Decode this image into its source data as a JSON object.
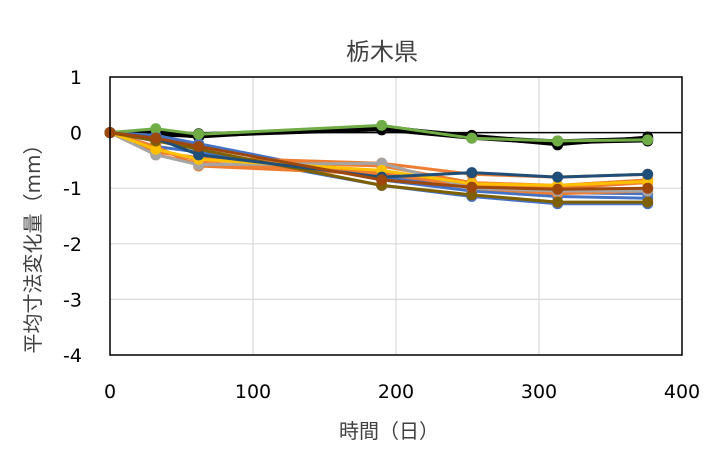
{
  "chart_data": {
    "type": "line",
    "title": "栃木県",
    "xlabel": "時間（日）",
    "ylabel": "平均寸法変化量（mm）",
    "xlim": [
      0,
      400
    ],
    "ylim": [
      -4,
      1
    ],
    "xticks": [
      0,
      100,
      200,
      300,
      400
    ],
    "yticks": [
      1,
      0,
      -1,
      -2,
      -3,
      -4
    ],
    "grid": true,
    "x": [
      0,
      32,
      62,
      190,
      253,
      313,
      376
    ],
    "series": [
      {
        "color": "#000000",
        "values": [
          0,
          0.02,
          -0.02,
          0.08,
          -0.08,
          -0.15,
          -0.1
        ]
      },
      {
        "color": "#000000",
        "values": [
          0,
          -0.05,
          -0.06,
          0.05,
          -0.1,
          -0.2,
          -0.12
        ]
      },
      {
        "color": "#000000",
        "values": [
          0,
          0.05,
          -0.04,
          0.1,
          -0.05,
          -0.18,
          -0.15
        ]
      },
      {
        "color": "#000000",
        "values": [
          0,
          -0.02,
          -0.08,
          0.12,
          -0.08,
          -0.22,
          -0.08
        ]
      },
      {
        "color": "#4472C4",
        "values": [
          0,
          -0.15,
          -0.25,
          -0.8,
          -0.95,
          -1.08,
          -1.1
        ]
      },
      {
        "color": "#4472C4",
        "values": [
          0,
          -0.25,
          -0.35,
          -0.95,
          -1.15,
          -1.28,
          -1.28
        ]
      },
      {
        "color": "#4472C4",
        "values": [
          0,
          -0.05,
          -0.2,
          -0.85,
          -1.05,
          -1.15,
          -1.18
        ]
      },
      {
        "color": "#ED7D31",
        "values": [
          0,
          -0.35,
          -0.45,
          -0.55,
          -0.75,
          -0.8,
          -0.75
        ]
      },
      {
        "color": "#ED7D31",
        "values": [
          0,
          -0.4,
          -0.55,
          -0.7,
          -1.0,
          -1.1,
          -1.05
        ]
      },
      {
        "color": "#ED7D31",
        "values": [
          0,
          -0.25,
          -0.6,
          -0.75,
          -0.95,
          -1.0,
          -0.9
        ]
      },
      {
        "color": "#ED7D31",
        "values": [
          0,
          -0.3,
          -0.5,
          -0.6,
          -0.9,
          -0.95,
          -0.85
        ]
      },
      {
        "color": "#70AD47",
        "values": [
          0,
          0.07,
          -0.03,
          0.13,
          -0.1,
          -0.15,
          -0.13
        ]
      },
      {
        "color": "#A5A5A5",
        "values": [
          0,
          -0.4,
          -0.58,
          -0.55,
          -1.0,
          -1.05,
          -1.05
        ]
      },
      {
        "color": "#FFC000",
        "values": [
          0,
          -0.3,
          -0.48,
          -0.68,
          -0.92,
          -0.95,
          -0.88
        ]
      },
      {
        "color": "#7F6000",
        "values": [
          0,
          -0.15,
          -0.3,
          -0.95,
          -1.12,
          -1.25,
          -1.25
        ]
      },
      {
        "color": "#1F4E79",
        "values": [
          0,
          -0.1,
          -0.4,
          -0.8,
          -0.72,
          -0.8,
          -0.75
        ]
      },
      {
        "color": "#9E480E",
        "values": [
          0,
          -0.1,
          -0.25,
          -0.85,
          -0.98,
          -1.02,
          -1.0
        ]
      }
    ]
  }
}
